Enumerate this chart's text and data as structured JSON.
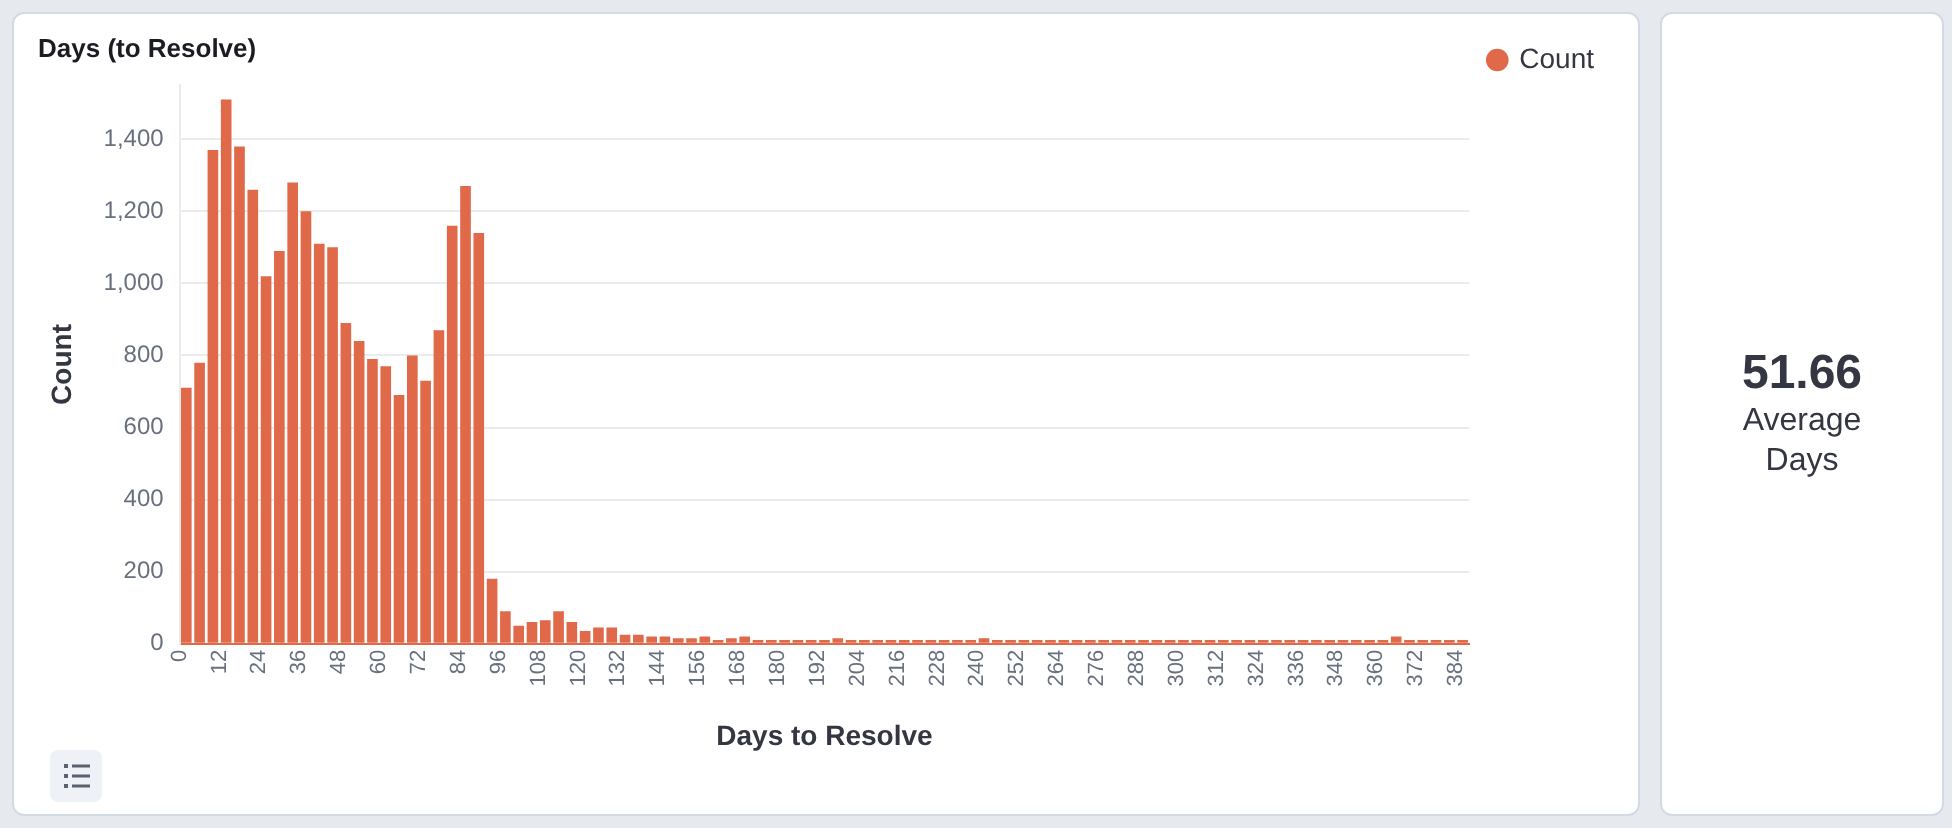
{
  "chart_data": [
    {
      "type": "histogram",
      "title": "Days (to Resolve)",
      "xlabel": "Days to Resolve",
      "ylabel": "Count",
      "bins": [
        0,
        4,
        8,
        12,
        16,
        20,
        24,
        28,
        32,
        36,
        40,
        44,
        48,
        52,
        56,
        60,
        64,
        68,
        72,
        76,
        80,
        84,
        88,
        92,
        96,
        100,
        104,
        108,
        112,
        116,
        120,
        124,
        128,
        132,
        136,
        140,
        144,
        148,
        152,
        156,
        160,
        164,
        168,
        172,
        176,
        180,
        184,
        188,
        192,
        196,
        200,
        204,
        208,
        212,
        216,
        220,
        224,
        228,
        232,
        236,
        240,
        244,
        248,
        252,
        256,
        260,
        264,
        268,
        272,
        276,
        280,
        284,
        288,
        292,
        296,
        300,
        304,
        308,
        312,
        316,
        320,
        324,
        328,
        332,
        336,
        340,
        344,
        348,
        352,
        356,
        360,
        364,
        368,
        372,
        376,
        380,
        384,
        388
      ],
      "series": [
        {
          "name": "Count",
          "color": "#e0694a",
          "values": [
            710,
            780,
            1370,
            1510,
            1380,
            1260,
            1020,
            1090,
            1280,
            1200,
            1110,
            1100,
            890,
            840,
            790,
            770,
            690,
            800,
            730,
            870,
            1160,
            1270,
            1140,
            180,
            90,
            50,
            60,
            65,
            90,
            60,
            35,
            45,
            45,
            25,
            25,
            20,
            20,
            15,
            15,
            20,
            10,
            15,
            20,
            10,
            10,
            10,
            10,
            10,
            10,
            15,
            10,
            10,
            10,
            10,
            10,
            10,
            10,
            10,
            10,
            10,
            15,
            10,
            10,
            10,
            10,
            10,
            10,
            10,
            10,
            10,
            10,
            10,
            10,
            10,
            10,
            10,
            10,
            10,
            10,
            10,
            10,
            10,
            10,
            10,
            10,
            10,
            10,
            10,
            10,
            10,
            10,
            20,
            10,
            10,
            10,
            10,
            10
          ]
        }
      ],
      "xlim": [
        0,
        388
      ],
      "xticks": [
        0,
        12,
        24,
        36,
        48,
        60,
        72,
        84,
        96,
        108,
        120,
        132,
        144,
        156,
        168,
        180,
        192,
        204,
        216,
        228,
        240,
        252,
        264,
        276,
        288,
        300,
        312,
        324,
        336,
        348,
        360,
        372,
        384
      ],
      "ylim": [
        0,
        1550
      ],
      "yticks": [
        0,
        200,
        400,
        600,
        800,
        {
          "value": 1000,
          "label": "1,000"
        },
        {
          "value": 1200,
          "label": "1,200"
        },
        {
          "value": 1400,
          "label": "1,400"
        }
      ],
      "grid": "y",
      "legend": "top right"
    },
    {
      "type": "other",
      "annotations": [
        "51.66",
        "Average Days"
      ]
    }
  ]
}
